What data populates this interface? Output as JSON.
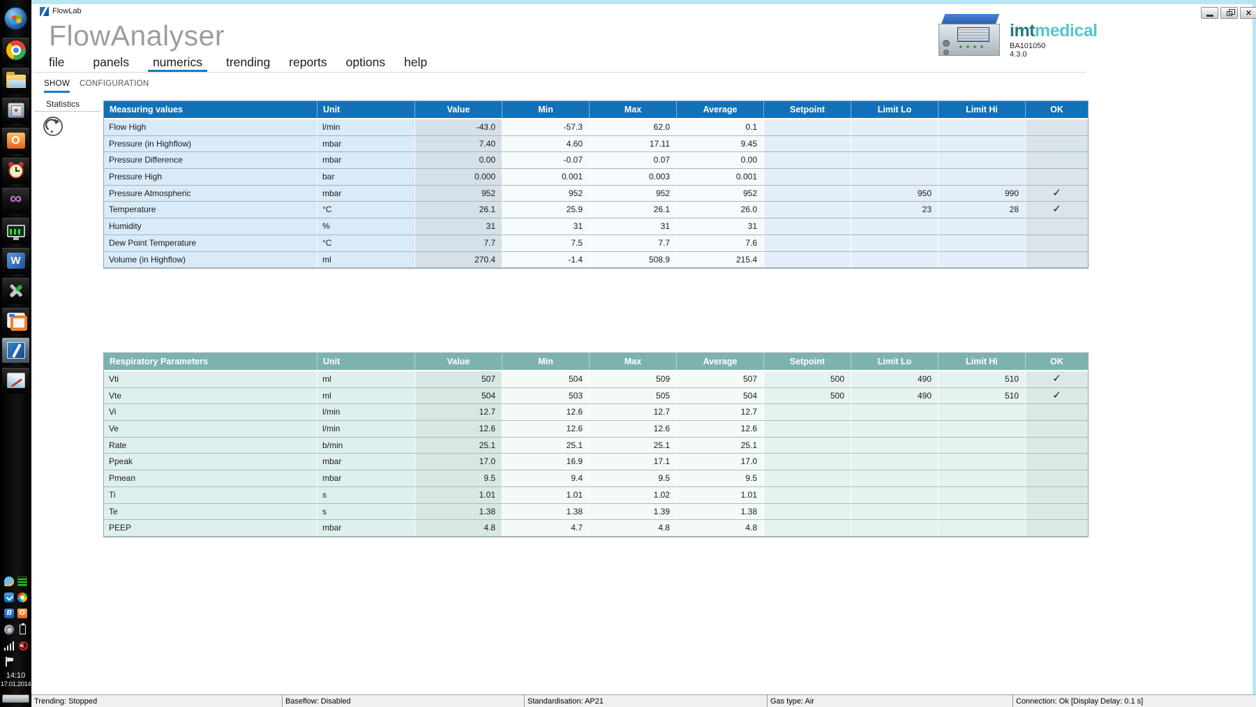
{
  "window": {
    "title": "FlowLab",
    "controls": [
      "minimize",
      "restore",
      "close"
    ]
  },
  "header": {
    "app_title": "FlowAnalyser",
    "brand": {
      "imt": "imt",
      "medical": "medical",
      "device_code": "BA101050",
      "version": "4.3.0"
    }
  },
  "menu": {
    "items": [
      "file",
      "panels",
      "numerics",
      "trending",
      "reports",
      "options",
      "help"
    ],
    "active": "numerics"
  },
  "tabs": {
    "items": [
      "SHOW",
      "CONFIGURATION"
    ],
    "active": "SHOW"
  },
  "sidebar": {
    "statistics_label": "Statistics",
    "refresh_icon": "refresh-circular-arrow-icon"
  },
  "tables": [
    {
      "accent": "#1371b8",
      "header": [
        "Measuring values",
        "Unit",
        "Value",
        "Min",
        "Max",
        "Average",
        "Setpoint",
        "Limit Lo",
        "Limit Hi",
        "OK"
      ],
      "rows": [
        {
          "name": "Flow High",
          "unit": "l/min",
          "value": "-43.0",
          "min": "-57.3",
          "max": "62.0",
          "avg": "0.1",
          "setpoint": "",
          "lo": "",
          "hi": "",
          "ok": ""
        },
        {
          "name": "Pressure (in Highflow)",
          "unit": "mbar",
          "value": "7.40",
          "min": "4.60",
          "max": "17.11",
          "avg": "9.45",
          "setpoint": "",
          "lo": "",
          "hi": "",
          "ok": ""
        },
        {
          "name": "Pressure Difference",
          "unit": "mbar",
          "value": "0.00",
          "min": "-0.07",
          "max": "0.07",
          "avg": "0.00",
          "setpoint": "",
          "lo": "",
          "hi": "",
          "ok": ""
        },
        {
          "name": "Pressure High",
          "unit": "bar",
          "value": "0.000",
          "min": "0.001",
          "max": "0.003",
          "avg": "0.001",
          "setpoint": "",
          "lo": "",
          "hi": "",
          "ok": ""
        },
        {
          "name": "Pressure Atmospheric",
          "unit": "mbar",
          "value": "952",
          "min": "952",
          "max": "952",
          "avg": "952",
          "setpoint": "",
          "lo": "950",
          "hi": "990",
          "ok": "✓"
        },
        {
          "name": "Temperature",
          "unit": "°C",
          "value": "26.1",
          "min": "25.9",
          "max": "26.1",
          "avg": "26.0",
          "setpoint": "",
          "lo": "23",
          "hi": "28",
          "ok": "✓"
        },
        {
          "name": "Humidity",
          "unit": "%",
          "value": "31",
          "min": "31",
          "max": "31",
          "avg": "31",
          "setpoint": "",
          "lo": "",
          "hi": "",
          "ok": ""
        },
        {
          "name": "Dew Point Temperature",
          "unit": "°C",
          "value": "7.7",
          "min": "7.5",
          "max": "7.7",
          "avg": "7.6",
          "setpoint": "",
          "lo": "",
          "hi": "",
          "ok": ""
        },
        {
          "name": "Volume (in Highflow)",
          "unit": "ml",
          "value": "270.4",
          "min": "-1.4",
          "max": "508.9",
          "avg": "215.4",
          "setpoint": "",
          "lo": "",
          "hi": "",
          "ok": ""
        }
      ]
    },
    {
      "accent": "#7cb3b0",
      "header": [
        "Respiratory Parameters",
        "Unit",
        "Value",
        "Min",
        "Max",
        "Average",
        "Setpoint",
        "Limit Lo",
        "Limit Hi",
        "OK"
      ],
      "rows": [
        {
          "name": "Vti",
          "unit": "ml",
          "value": "507",
          "min": "504",
          "max": "509",
          "avg": "507",
          "setpoint": "500",
          "lo": "490",
          "hi": "510",
          "ok": "✓"
        },
        {
          "name": "Vte",
          "unit": "ml",
          "value": "504",
          "min": "503",
          "max": "505",
          "avg": "504",
          "setpoint": "500",
          "lo": "490",
          "hi": "510",
          "ok": "✓"
        },
        {
          "name": "Vi",
          "unit": "l/min",
          "value": "12.7",
          "min": "12.6",
          "max": "12.7",
          "avg": "12.7",
          "setpoint": "",
          "lo": "",
          "hi": "",
          "ok": ""
        },
        {
          "name": "Ve",
          "unit": "l/min",
          "value": "12.6",
          "min": "12.6",
          "max": "12.6",
          "avg": "12.6",
          "setpoint": "",
          "lo": "",
          "hi": "",
          "ok": ""
        },
        {
          "name": "Rate",
          "unit": "b/min",
          "value": "25.1",
          "min": "25.1",
          "max": "25.1",
          "avg": "25.1",
          "setpoint": "",
          "lo": "",
          "hi": "",
          "ok": ""
        },
        {
          "name": "Ppeak",
          "unit": "mbar",
          "value": "17.0",
          "min": "16.9",
          "max": "17.1",
          "avg": "17.0",
          "setpoint": "",
          "lo": "",
          "hi": "",
          "ok": ""
        },
        {
          "name": "Pmean",
          "unit": "mbar",
          "value": "9.5",
          "min": "9.4",
          "max": "9.5",
          "avg": "9.5",
          "setpoint": "",
          "lo": "",
          "hi": "",
          "ok": ""
        },
        {
          "name": "Ti",
          "unit": "s",
          "value": "1.01",
          "min": "1.01",
          "max": "1.02",
          "avg": "1.01",
          "setpoint": "",
          "lo": "",
          "hi": "",
          "ok": ""
        },
        {
          "name": "Te",
          "unit": "s",
          "value": "1.38",
          "min": "1.38",
          "max": "1.39",
          "avg": "1.38",
          "setpoint": "",
          "lo": "",
          "hi": "",
          "ok": ""
        },
        {
          "name": "PEEP",
          "unit": "mbar",
          "value": "4.8",
          "min": "4.7",
          "max": "4.8",
          "avg": "4.8",
          "setpoint": "",
          "lo": "",
          "hi": "",
          "ok": ""
        }
      ]
    }
  ],
  "statusbar": {
    "items": [
      "Trending: Stopped",
      "Baseflow: Disabled",
      "Standardisation: AP21",
      "Gas type: Air",
      "Connection: Ok [Display Delay: 0.1 s]"
    ]
  },
  "taskbar": {
    "apps": [
      "windows-start",
      "chrome",
      "windows-explorer",
      "safe",
      "outlook",
      "alarm-clock",
      "visual-studio",
      "system-monitor",
      "word",
      "tools",
      "vmware",
      "flowlab",
      "image-editor"
    ],
    "active_app": "flowlab",
    "tray": [
      "messenger-bird",
      "led-grid",
      "dropbox",
      "windows-update",
      "bluetooth",
      "outlook-tray",
      "status-circle",
      "battery",
      "signal-bars",
      "muted-speaker",
      "action-center-flag"
    ],
    "clock": {
      "time": "14:10",
      "date": "17.01.2014"
    }
  },
  "colors": {
    "table_blue_header": "#1371b8",
    "table_teal_header": "#7cb3b0",
    "menu_underline": "#1b79c0",
    "brand_imt": "#1d7a7e",
    "brand_medical": "#57c5cf"
  }
}
